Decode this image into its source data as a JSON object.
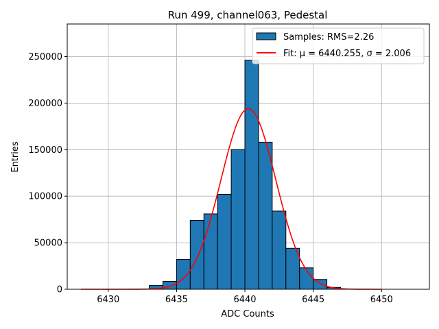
{
  "chart_data": {
    "type": "bar",
    "title": "Run 499, channel063, Pedestal",
    "xlabel": "ADC Counts",
    "ylabel": "Entries",
    "xlim": [
      6427,
      6453.5
    ],
    "ylim": [
      0,
      285000
    ],
    "xticks": [
      6430,
      6435,
      6440,
      6445,
      6450
    ],
    "yticks": [
      0,
      50000,
      100000,
      150000,
      200000,
      250000
    ],
    "grid": true,
    "legend_position": "top-right",
    "histogram": {
      "name": "Samples: RMS=2.26",
      "color": "#1f77b4",
      "bin_width": 1,
      "bins": [
        {
          "left": 6433,
          "count": 4000
        },
        {
          "left": 6434,
          "count": 8500
        },
        {
          "left": 6435,
          "count": 32000
        },
        {
          "left": 6436,
          "count": 74000
        },
        {
          "left": 6437,
          "count": 81000
        },
        {
          "left": 6438,
          "count": 102000
        },
        {
          "left": 6439,
          "count": 150000
        },
        {
          "left": 6440,
          "count": 246000
        },
        {
          "left": 6441,
          "count": 158000
        },
        {
          "left": 6442,
          "count": 84000
        },
        {
          "left": 6443,
          "count": 44000
        },
        {
          "left": 6444,
          "count": 23000
        },
        {
          "left": 6445,
          "count": 10500
        },
        {
          "left": 6446,
          "count": 2000
        }
      ]
    },
    "fit": {
      "name": "Fit: μ = 6440.255, σ = 2.006",
      "color": "#ff0000",
      "mu": 6440.255,
      "sigma": 2.006,
      "amplitude": 194000,
      "x_range": [
        6428,
        6450
      ]
    }
  }
}
